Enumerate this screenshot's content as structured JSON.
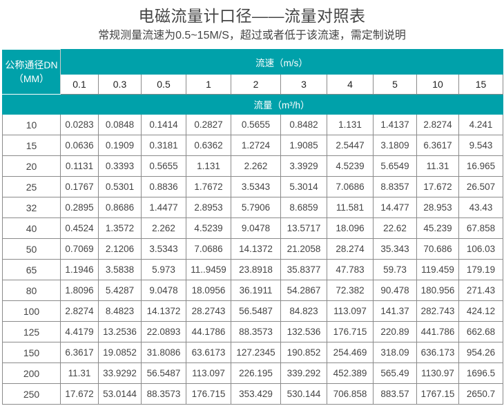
{
  "title": "电磁流量计口径——流量对照表",
  "subtitle": "常规测量流速为0.5~15M/S，超过或者低于该流速，需定制说明",
  "table": {
    "dn_header_line1": "公称通径DN",
    "dn_header_line2": "（MM）",
    "velocity_header": "流速（m/s）",
    "flow_header": "流量（m³/h）",
    "velocities": [
      "0.1",
      "0.3",
      "0.5",
      "1",
      "2",
      "3",
      "4",
      "5",
      "10",
      "15"
    ],
    "rows": [
      {
        "dn": "10",
        "values": [
          "0.0283",
          "0.0848",
          "0.1414",
          "0.2827",
          "0.5655",
          "0.8482",
          "1.131",
          "1.4137",
          "2.8274",
          "4.241"
        ]
      },
      {
        "dn": "15",
        "values": [
          "0.0636",
          "0.1909",
          "0.3181",
          "0.6362",
          "1.2724",
          "1.9085",
          "2.5447",
          "3.1809",
          "6.3617",
          "9.543"
        ]
      },
      {
        "dn": "20",
        "values": [
          "0.1131",
          "0.3393",
          "0.5655",
          "1.131",
          "2.262",
          "3.3929",
          "4.5239",
          "5.6549",
          "11.31",
          "16.965"
        ]
      },
      {
        "dn": "25",
        "values": [
          "0.1767",
          "0.5301",
          "0.8836",
          "1.7672",
          "3.5343",
          "5.3014",
          "7.0686",
          "8.8357",
          "17.672",
          "26.507"
        ]
      },
      {
        "dn": "32",
        "values": [
          "0.2895",
          "0.8686",
          "1.4477",
          "2.8953",
          "5.7906",
          "8.6859",
          "11.581",
          "14.477",
          "28.953",
          "43.43"
        ]
      },
      {
        "dn": "40",
        "values": [
          "0.4524",
          "1.3572",
          "2.262",
          "4.5239",
          "9.0478",
          "13.5717",
          "18.096",
          "22.62",
          "45.239",
          "67.858"
        ]
      },
      {
        "dn": "50",
        "values": [
          "0.7069",
          "2.1206",
          "3.5343",
          "7.0686",
          "14.1372",
          "21.2058",
          "28.274",
          "35.343",
          "70.686",
          "106.03"
        ]
      },
      {
        "dn": "65",
        "values": [
          "1.1946",
          "3.5838",
          "5.973",
          "11..9459",
          "23.8918",
          "35.8377",
          "47.783",
          "59.73",
          "119.459",
          "179.19"
        ]
      },
      {
        "dn": "80",
        "values": [
          "1.8096",
          "5.4287",
          "9.0478",
          "18.0956",
          "36.1911",
          "54.2867",
          "72.382",
          "90.478",
          "180.956",
          "271.43"
        ]
      },
      {
        "dn": "100",
        "values": [
          "2.8274",
          "8.4823",
          "14.1372",
          "28.2743",
          "56.5487",
          "84.823",
          "113.097",
          "141.37",
          "282.743",
          "424.12"
        ]
      },
      {
        "dn": "125",
        "values": [
          "4.4179",
          "13.2536",
          "22.0893",
          "44.1786",
          "88.3573",
          "132.536",
          "176.715",
          "220.89",
          "441.786",
          "662.68"
        ]
      },
      {
        "dn": "150",
        "values": [
          "6.3617",
          "19.0852",
          "31.8086",
          "63.6173",
          "127.2345",
          "190.852",
          "254.469",
          "318.09",
          "636.173",
          "954.26"
        ]
      },
      {
        "dn": "200",
        "values": [
          "11.31",
          "33.9292",
          "56.5487",
          "113.097",
          "226.195",
          "339.292",
          "452.389",
          "565.49",
          "1130.97",
          "1696.5"
        ]
      },
      {
        "dn": "250",
        "values": [
          "17.672",
          "53.0144",
          "88.3573",
          "176.715",
          "353.429",
          "530.144",
          "706.858",
          "883.57",
          "1767.15",
          "2650.7"
        ]
      }
    ]
  },
  "colors": {
    "header_teal": "#00a1aa",
    "border": "#8a8a8a"
  }
}
